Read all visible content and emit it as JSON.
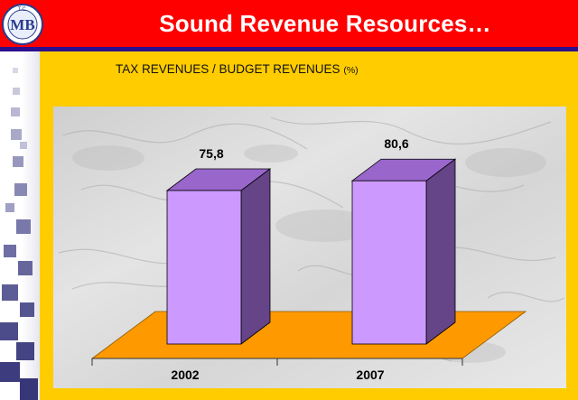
{
  "header": {
    "title": "Sound Revenue Resources…",
    "logo": {
      "top_text": "T.C.",
      "letters": "MB"
    }
  },
  "colors": {
    "header_red": "#ff0000",
    "panel_yellow": "#ffcc00",
    "bar_front": "#cc99ff",
    "bar_top": "#9966cc",
    "bar_side": "#664488",
    "floor": "#ff9900",
    "rule_blue": "#2b0f8c"
  },
  "chart_data": {
    "type": "bar",
    "title": "TAX REVENUES / BUDGET REVENUES",
    "title_unit": "(%)",
    "categories": [
      "2002",
      "2007"
    ],
    "values": [
      75.8,
      80.6
    ],
    "value_labels": [
      "75,8",
      "80,6"
    ],
    "ylim": [
      0,
      100
    ],
    "grid": false,
    "style": "3d"
  }
}
